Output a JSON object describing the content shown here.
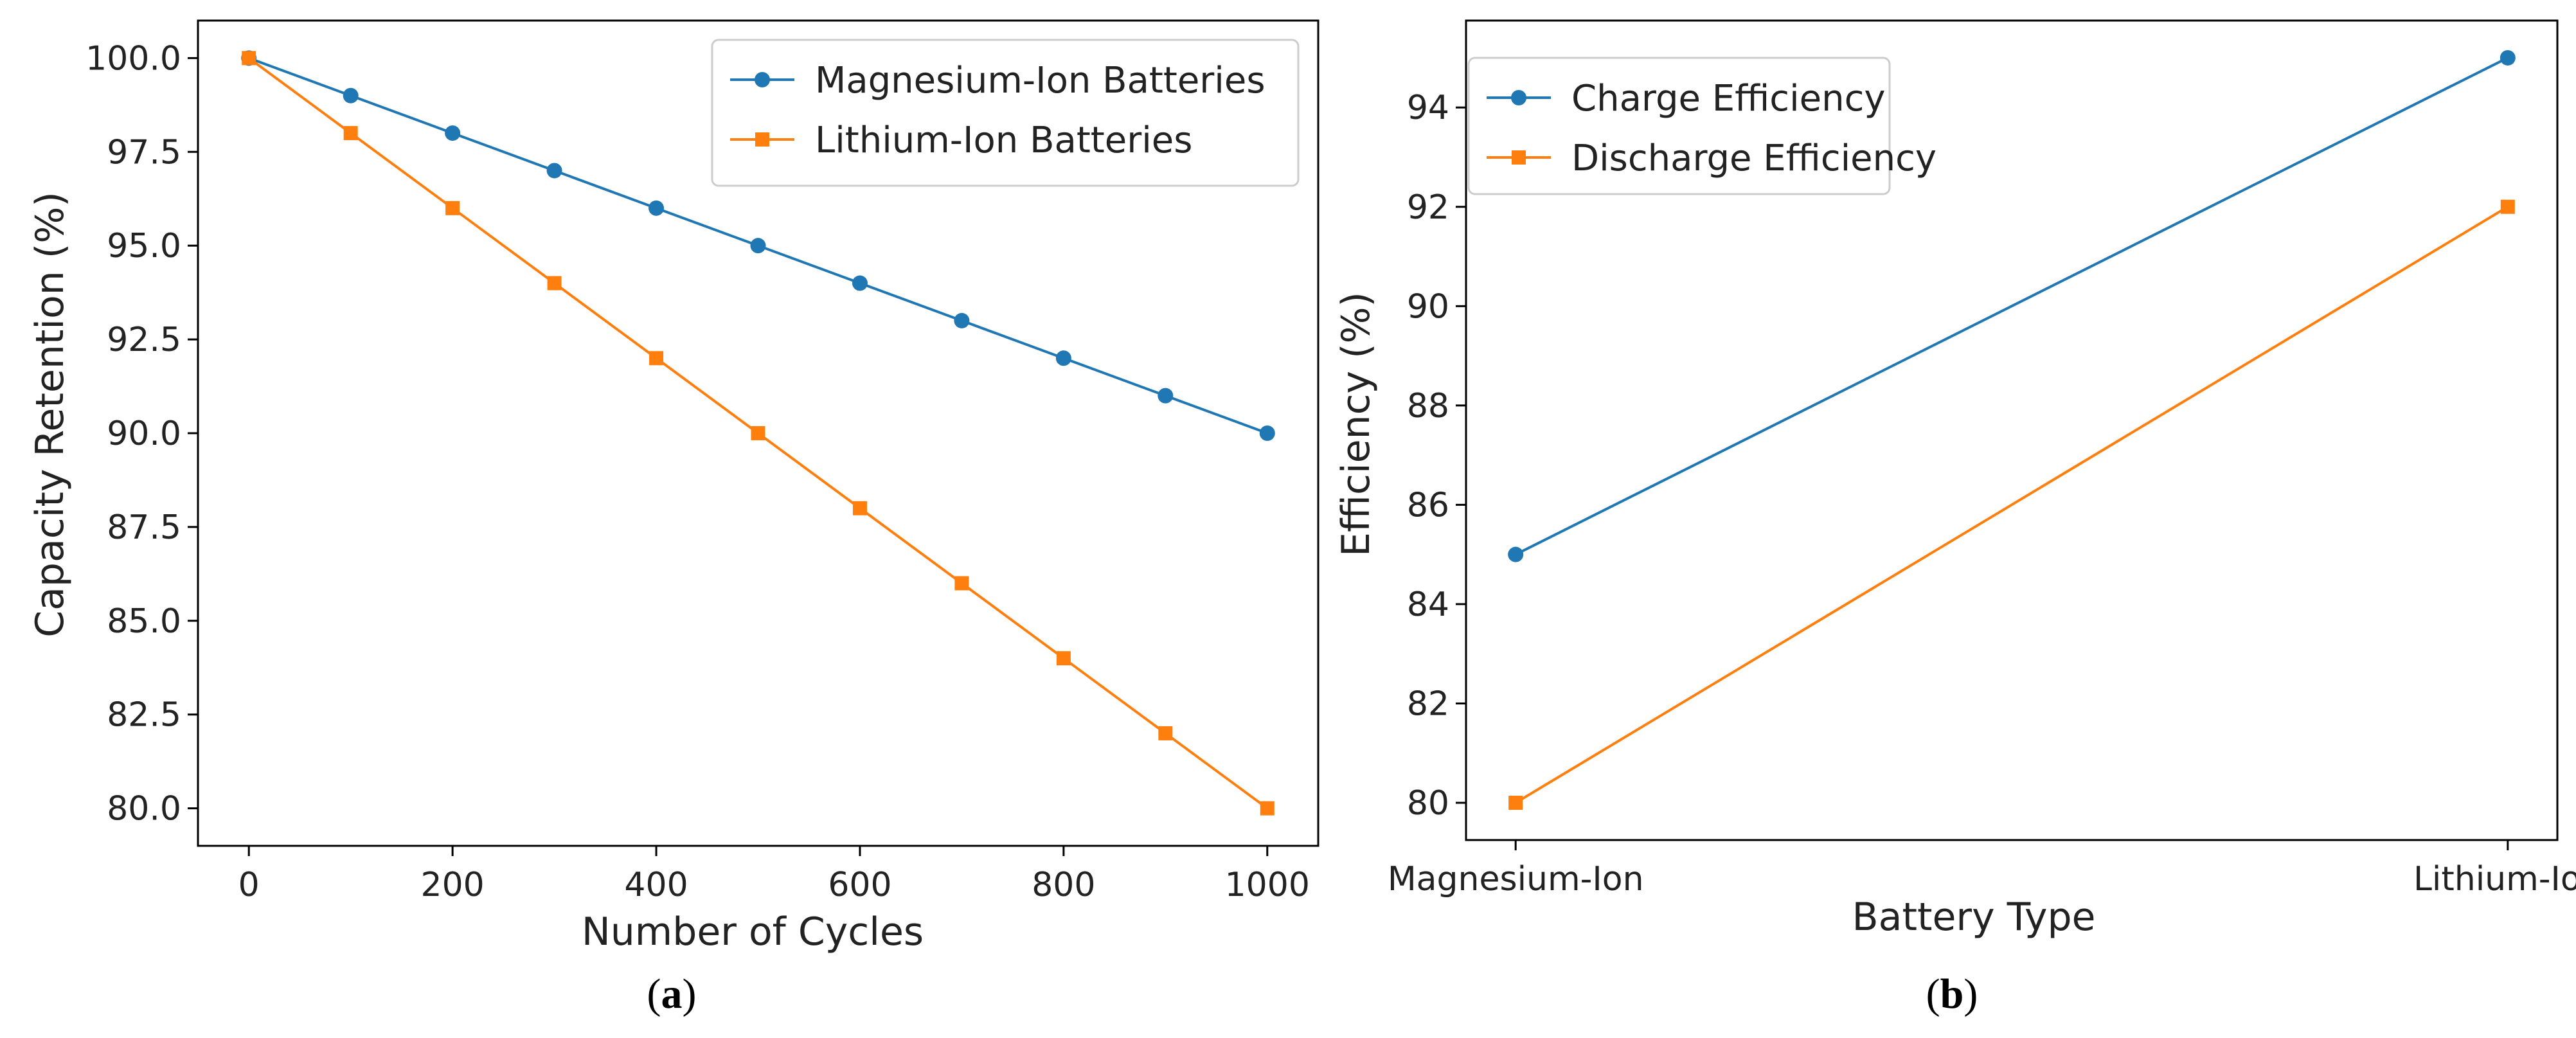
{
  "colors": {
    "series1": "#1f77b4",
    "series2": "#ff7f0e",
    "axis": "#000000"
  },
  "chart_data": [
    {
      "panel": "(a)",
      "type": "line",
      "title": "",
      "xlabel": "Number of Cycles",
      "ylabel": "Capacity Retention (%)",
      "x": [
        0,
        100,
        200,
        300,
        400,
        500,
        600,
        700,
        800,
        900,
        1000
      ],
      "xticks": [
        0,
        200,
        400,
        600,
        800,
        1000
      ],
      "xtick_labels": [
        "0",
        "200",
        "400",
        "600",
        "800",
        "1000"
      ],
      "yticks": [
        80.0,
        82.5,
        85.0,
        87.5,
        90.0,
        92.5,
        95.0,
        97.5,
        100.0
      ],
      "ytick_labels": [
        "80.0",
        "82.5",
        "85.0",
        "87.5",
        "90.0",
        "92.5",
        "95.0",
        "97.5",
        "100.0"
      ],
      "xlim": [
        -50,
        1050
      ],
      "ylim": [
        79.0,
        101.0
      ],
      "legend_position": "top-right",
      "grid": false,
      "series": [
        {
          "name": "Magnesium-Ion Batteries",
          "marker": "circle",
          "values": [
            100,
            99,
            98,
            97,
            96,
            95,
            94,
            93,
            92,
            91,
            90
          ]
        },
        {
          "name": "Lithium-Ion Batteries",
          "marker": "square",
          "values": [
            100,
            98,
            96,
            94,
            92,
            90,
            88,
            86,
            84,
            82,
            80
          ]
        }
      ]
    },
    {
      "panel": "(b)",
      "type": "line",
      "title": "",
      "xlabel": "Battery Type",
      "ylabel": "Efficiency (%)",
      "categories": [
        "Magnesium-Ion",
        "Lithium-Ion"
      ],
      "yticks": [
        80,
        82,
        84,
        86,
        88,
        90,
        92,
        94
      ],
      "ytick_labels": [
        "80",
        "82",
        "84",
        "86",
        "88",
        "90",
        "92",
        "94"
      ],
      "xlim": [
        -0.05,
        1.05
      ],
      "ylim": [
        79.25,
        95.75
      ],
      "legend_position": "top-left",
      "grid": false,
      "series": [
        {
          "name": "Charge Efficiency",
          "marker": "circle",
          "values": [
            85,
            95
          ]
        },
        {
          "name": "Discharge Efficiency",
          "marker": "square",
          "values": [
            80,
            92
          ]
        }
      ]
    }
  ]
}
